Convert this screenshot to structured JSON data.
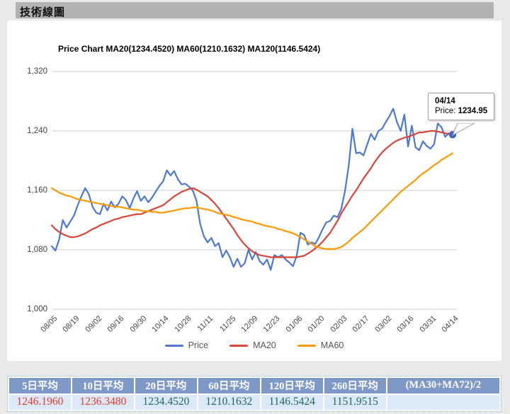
{
  "page": {
    "header_title": "技術線圖"
  },
  "chart": {
    "tooltip": {
      "date": "04/14",
      "label": "Price:",
      "value": "1234.95"
    }
  },
  "chart_data": {
    "type": "line",
    "title": "Price Chart MA20(1234.4520) MA60(1210.1632) MA120(1146.5424)",
    "xlabel": "",
    "ylabel": "",
    "ylim": [
      1000,
      1320
    ],
    "grid": true,
    "legend_position": "bottom",
    "x_tick_labels": [
      "08/05",
      "08/19",
      "09/02",
      "09/16",
      "09/30",
      "10/14",
      "10/28",
      "11/11",
      "11/25",
      "12/09",
      "12/23",
      "01/06",
      "01/20",
      "02/03",
      "02/17",
      "03/02",
      "03/16",
      "03/31",
      "04/14"
    ],
    "y_ticks": [
      {
        "value": 1000,
        "label": "1,000"
      },
      {
        "value": 1080,
        "label": "1,080"
      },
      {
        "value": 1160,
        "label": "1,160"
      },
      {
        "value": 1240,
        "label": "1,240"
      },
      {
        "value": 1320,
        "label": "1,320"
      }
    ],
    "points_per_tick_gap": 6,
    "highlight_point": {
      "series": "Price",
      "date": "04/14",
      "value": 1234.95
    },
    "series": [
      {
        "name": "Price",
        "color": "#4c78d4",
        "values": [
          1085,
          1079,
          1094,
          1120,
          1110,
          1118,
          1126,
          1140,
          1152,
          1163,
          1155,
          1138,
          1130,
          1128,
          1142,
          1133,
          1145,
          1137,
          1142,
          1152,
          1147,
          1136,
          1149,
          1159,
          1146,
          1152,
          1144,
          1150,
          1158,
          1166,
          1172,
          1187,
          1180,
          1186,
          1175,
          1168,
          1169,
          1165,
          1160,
          1146,
          1115,
          1098,
          1090,
          1096,
          1085,
          1089,
          1070,
          1079,
          1070,
          1057,
          1068,
          1057,
          1062,
          1080,
          1067,
          1077,
          1065,
          1060,
          1067,
          1053,
          1073,
          1070,
          1073,
          1067,
          1063,
          1058,
          1072,
          1103,
          1100,
          1087,
          1090,
          1088,
          1097,
          1108,
          1117,
          1119,
          1126,
          1124,
          1135,
          1159,
          1193,
          1243,
          1210,
          1211,
          1207,
          1222,
          1236,
          1228,
          1240,
          1243,
          1252,
          1260,
          1270,
          1252,
          1240,
          1262,
          1219,
          1247,
          1218,
          1214,
          1226,
          1220,
          1216,
          1222,
          1250,
          1245,
          1232,
          1237,
          1234.95
        ]
      },
      {
        "name": "MA20",
        "color": "#db4437",
        "values": [
          1113,
          1108,
          1104,
          1101,
          1099,
          1097,
          1097,
          1098,
          1100,
          1102,
          1105,
          1108,
          1110,
          1113,
          1115,
          1117,
          1119,
          1121,
          1122,
          1124,
          1125,
          1126,
          1127,
          1128,
          1128,
          1130,
          1132,
          1134,
          1136,
          1138,
          1140,
          1144,
          1148,
          1152,
          1155,
          1158,
          1160,
          1162,
          1163,
          1161,
          1158,
          1155,
          1152,
          1147,
          1142,
          1136,
          1129,
          1122,
          1115,
          1108,
          1100,
          1093,
          1087,
          1082,
          1078,
          1075,
          1073,
          1072,
          1071,
          1070,
          1070,
          1070,
          1070,
          1070,
          1070,
          1070,
          1070,
          1071,
          1072,
          1075,
          1078,
          1082,
          1086,
          1091,
          1097,
          1103,
          1111,
          1119,
          1129,
          1137,
          1145,
          1153,
          1160,
          1168,
          1176,
          1183,
          1190,
          1198,
          1205,
          1211,
          1216,
          1220,
          1224,
          1227,
          1229,
          1231,
          1232,
          1234,
          1236,
          1238,
          1238,
          1239,
          1240,
          1240,
          1239,
          1238,
          1237,
          1236,
          1234.45
        ]
      },
      {
        "name": "MA60",
        "color": "#ff9900",
        "values": [
          1163,
          1160,
          1157,
          1155,
          1153,
          1152,
          1150,
          1148,
          1147,
          1146,
          1145,
          1144,
          1143,
          1142,
          1141,
          1140,
          1139,
          1138,
          1138,
          1137,
          1136,
          1135,
          1134,
          1134,
          1133,
          1132,
          1132,
          1131,
          1131,
          1130,
          1130,
          1131,
          1132,
          1133,
          1134,
          1135,
          1136,
          1136,
          1137,
          1137,
          1136,
          1135,
          1134,
          1133,
          1131,
          1129,
          1128,
          1127,
          1126,
          1124,
          1123,
          1121,
          1120,
          1119,
          1118,
          1116,
          1115,
          1113,
          1112,
          1111,
          1110,
          1108,
          1107,
          1105,
          1104,
          1102,
          1100,
          1097,
          1094,
          1091,
          1088,
          1085,
          1083,
          1082,
          1081,
          1081,
          1081,
          1082,
          1084,
          1087,
          1091,
          1096,
          1100,
          1104,
          1108,
          1113,
          1118,
          1123,
          1128,
          1133,
          1138,
          1143,
          1148,
          1153,
          1158,
          1162,
          1166,
          1170,
          1174,
          1179,
          1183,
          1186,
          1190,
          1194,
          1197,
          1201,
          1204,
          1207,
          1210
        ]
      }
    ]
  },
  "table": {
    "headers": [
      "5日平均",
      "10日平均",
      "20日平均",
      "60日平均",
      "120日平均",
      "260日平均",
      "(MA30+MA72)/2"
    ],
    "values": [
      {
        "text": "1246.1960",
        "color": "#e33b2b"
      },
      {
        "text": "1236.3480",
        "color": "#e33b2b"
      },
      {
        "text": "1234.4520",
        "color": "#226660"
      },
      {
        "text": "1210.1632",
        "color": "#226660"
      },
      {
        "text": "1146.5424",
        "color": "#226660"
      },
      {
        "text": "1151.9515",
        "color": "#226660"
      },
      {
        "text": "",
        "color": "#226660"
      }
    ]
  },
  "colors": {
    "header_bar": "#b2b2b2",
    "grid": "#cccccc",
    "table_header_bg": "#7f99c7",
    "table_value_bg": "#dce9f6",
    "table_border": "#74b3d6",
    "up_value": "#e33b2b",
    "down_value": "#226660"
  }
}
